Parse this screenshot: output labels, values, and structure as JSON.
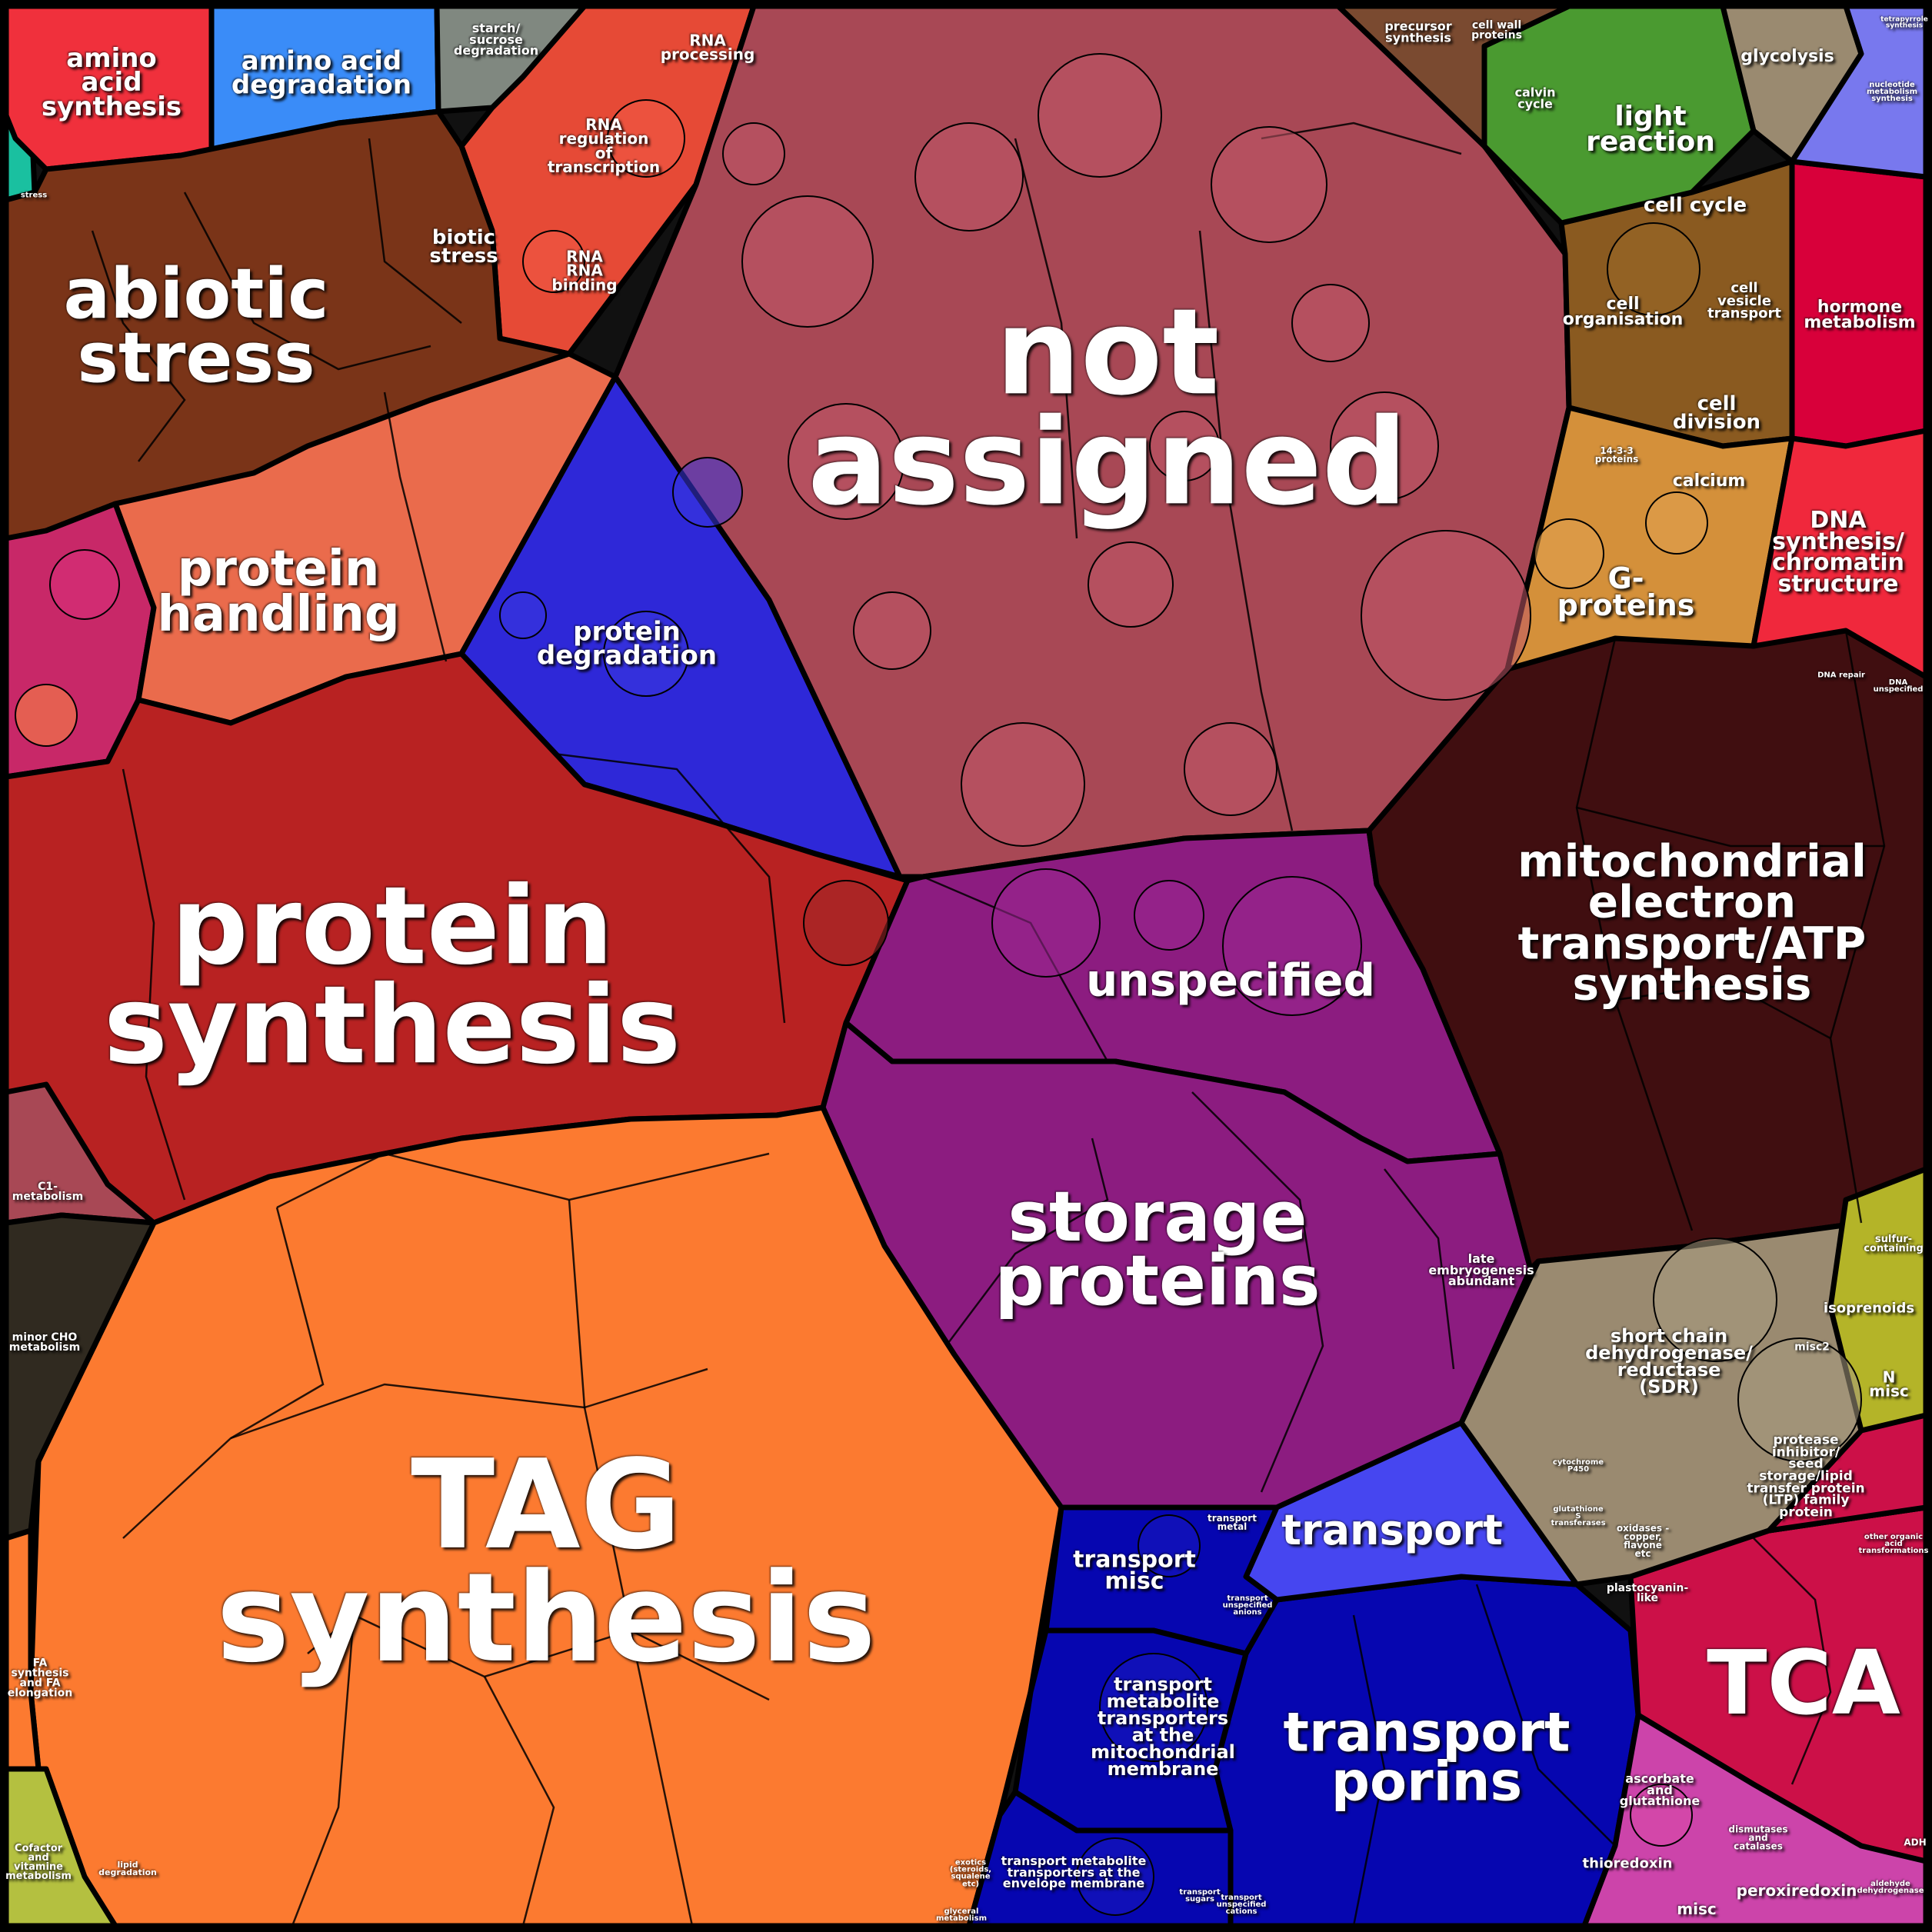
{
  "map": {
    "background": "#111111",
    "regions": [
      {
        "name": "not-assigned",
        "label": "not\nassigned",
        "color": "#a84855"
      },
      {
        "name": "tag-synthesis",
        "label": "TAG\nsynthesis",
        "color": "#fc7a30"
      },
      {
        "name": "protein-synthesis",
        "label": "protein\nsynthesis",
        "color": "#b82222"
      },
      {
        "name": "storage-proteins",
        "label": "storage\nproteins",
        "color": "#8c1c80"
      },
      {
        "name": "unspecified",
        "label": "unspecified",
        "color": "#8c1c80"
      },
      {
        "name": "mitochondrial-electron-transport",
        "label": "mitochondrial\nelectron\ntransport/ATP\nsynthesis",
        "color": "#400e10"
      },
      {
        "name": "abiotic-stress",
        "label": "abiotic\nstress",
        "color": "#7a3418"
      },
      {
        "name": "biotic-stress",
        "label": "biotic\nstress",
        "color": "#7a3418"
      },
      {
        "name": "stress",
        "label": "stress",
        "color": "#7a3418"
      },
      {
        "name": "protein-handling",
        "label": "protein\nhandling",
        "color": "#ea6b4c"
      },
      {
        "name": "protein-degradation",
        "label": "protein\ndegradation",
        "color": "#2e28d8"
      },
      {
        "name": "amino-acid-synthesis",
        "label": "amino\nacid\nsynthesis",
        "color": "#f0303c"
      },
      {
        "name": "amino-acid-degradation",
        "label": "amino acid\ndegradation",
        "color": "#3a8cf8"
      },
      {
        "name": "starch-sucrose-degradation",
        "label": "starch/\nsucrose\ndegradation",
        "color": "#808880"
      },
      {
        "name": "rna-regulation",
        "label": "RNA\nregulation\nof\ntranscription",
        "color": "#e64a36"
      },
      {
        "name": "rna-processing",
        "label": "RNA\nprocessing",
        "color": "#e64a36"
      },
      {
        "name": "rna-binding",
        "label": "RNA\nRNA\nbinding",
        "color": "#e64a36"
      },
      {
        "name": "tca",
        "label": "TCA",
        "color": "#cc1048"
      },
      {
        "name": "transport-porins",
        "label": "transport\nporins",
        "color": "#0606b0"
      },
      {
        "name": "transport",
        "label": "transport",
        "color": "#4646f0"
      },
      {
        "name": "transport-misc",
        "label": "transport\nmisc",
        "color": "#0606b0"
      },
      {
        "name": "transport-mitochondrial-membrane",
        "label": "transport\nmetabolite\ntransporters\nat the\nmitochondrial\nmembrane",
        "color": "#0606b0"
      },
      {
        "name": "transport-envelope-membrane",
        "label": "transport metabolite\ntransporters at the\nenvelope membrane",
        "color": "#0606b0"
      },
      {
        "name": "transport-metal",
        "label": "transport\nmetal",
        "color": "#0606b0"
      },
      {
        "name": "transport-unspecified-anions",
        "label": "transport\nunspecified\nanions",
        "color": "#0606b0"
      },
      {
        "name": "transport-sugars",
        "label": "transport\nsugars",
        "color": "#0606b0"
      },
      {
        "name": "transport-unspecified-cations",
        "label": "transport\nunspecified\ncations",
        "color": "#0606b0"
      },
      {
        "name": "short-chain-dehydrogenase",
        "label": "short chain\ndehydrogenase/\nreductase\n(SDR)",
        "color": "#9a8a70"
      },
      {
        "name": "protease-inhibitor",
        "label": "protease inhibitor/\nseed storage/lipid\ntransfer protein\n(LTP) family\nprotein",
        "color": "#9a8a70"
      },
      {
        "name": "misc2",
        "label": "misc2",
        "color": "#9a8a70"
      },
      {
        "name": "plastocyanin-like",
        "label": "plastocyanin-\nlike",
        "color": "#9a8a70"
      },
      {
        "name": "oxidases",
        "label": "oxidases -\ncopper,\nflavone\netc",
        "color": "#9a8a70"
      },
      {
        "name": "glutathione-s-transferases",
        "label": "glutathione\nS\ntransferases",
        "color": "#9a8a70"
      },
      {
        "name": "cytochrome-p450",
        "label": "cytochrome\nP450",
        "color": "#9a8a70"
      },
      {
        "name": "late-embryogenesis-abundant",
        "label": "late\nembryogenesis\nabundant",
        "color": "#8c1c80"
      },
      {
        "name": "cell-cycle",
        "label": "cell cycle",
        "color": "#8a5a20"
      },
      {
        "name": "cell-organisation",
        "label": "cell\norganisation",
        "color": "#8a5a20"
      },
      {
        "name": "cell-vesicle-transport",
        "label": "cell\nvesicle\ntransport",
        "color": "#8a5a20"
      },
      {
        "name": "cell-division",
        "label": "cell\ndivision",
        "color": "#8a5a20"
      },
      {
        "name": "calcium",
        "label": "calcium",
        "color": "#d4903a"
      },
      {
        "name": "g-proteins",
        "label": "G-\nproteins",
        "color": "#d4903a"
      },
      {
        "name": "14-3-3-proteins",
        "label": "14-3-3\nproteins",
        "color": "#d4903a"
      },
      {
        "name": "hormone-metabolism",
        "label": "hormone\nmetabolism",
        "color": "#d8003a"
      },
      {
        "name": "dna-synthesis-chromatin",
        "label": "DNA\nsynthesis/\nchromatin\nstructure",
        "color": "#f0283c"
      },
      {
        "name": "dna-unspecified",
        "label": "DNA\nunspecified",
        "color": "#f0283c"
      },
      {
        "name": "dna-repair",
        "label": "DNA repair",
        "color": "#f0283c"
      },
      {
        "name": "light-reaction",
        "label": "light\nreaction",
        "color": "#4a9a30"
      },
      {
        "name": "calvin-cycle",
        "label": "calvin\ncycle",
        "color": "#4a9a30"
      },
      {
        "name": "glycolysis",
        "label": "glycolysis",
        "color": "#9a8a70"
      },
      {
        "name": "nucleotide-metabolism",
        "label": "nucleotide\nmetabolism\nsynthesis",
        "color": "#7878ee"
      },
      {
        "name": "tetrapyrrole-synthesis",
        "label": "tetrapyrrole\nsynthesis",
        "color": "#3a3a3a"
      },
      {
        "name": "precursor-synthesis",
        "label": "precursor\nsynthesis",
        "color": "#7a4a30"
      },
      {
        "name": "cell-wall-proteins",
        "label": "cell wall\nproteins",
        "color": "#7a4a30"
      },
      {
        "name": "isoprenoids",
        "label": "isoprenoids",
        "color": "#b4b428"
      },
      {
        "name": "sulfur-containing",
        "label": "sulfur-\ncontaining",
        "color": "#b4b428"
      },
      {
        "name": "n-misc",
        "label": "N\nmisc",
        "color": "#b4b428"
      },
      {
        "name": "other-organic-acid",
        "label": "other organic\nacid\ntransformations",
        "color": "#cc1048"
      },
      {
        "name": "ascorbate-glutathione",
        "label": "ascorbate\nand\nglutathione",
        "color": "#cc44aa"
      },
      {
        "name": "dismutases-catalases",
        "label": "dismutases\nand\ncatalases",
        "color": "#5070d8"
      },
      {
        "name": "thioredoxin",
        "label": "thioredoxin",
        "color": "#4a1a3a"
      },
      {
        "name": "peroxiredoxin",
        "label": "peroxiredoxin",
        "color": "#9a4868"
      },
      {
        "name": "misc-redox",
        "label": "misc",
        "color": "#cc44aa"
      },
      {
        "name": "aldehyde-dehydrogenase",
        "label": "aldehyde\ndehydrogenase",
        "color": "#7a2830"
      },
      {
        "name": "adh",
        "label": "ADH",
        "color": "#7a2830"
      },
      {
        "name": "c1-metabolism",
        "label": "C1-\nmetabolism",
        "color": "#a84855"
      },
      {
        "name": "minor-cho-metabolism",
        "label": "minor CHO\nmetabolism",
        "color": "#302a20"
      },
      {
        "name": "fa-synthesis",
        "label": "FA\nsynthesis\nand FA\nelongation",
        "color": "#fc7a30"
      },
      {
        "name": "cofactor-vitamine",
        "label": "Cofactor\nand\nvitamine\nmetabolism",
        "color": "#b4c040"
      },
      {
        "name": "lipid-degradation",
        "label": "lipid\ndegradation",
        "color": "#fc7a30"
      },
      {
        "name": "exotics",
        "label": "exotics\n(steroids,\nsqualene\netc)",
        "color": "#fc7a30"
      },
      {
        "name": "glycerol-metabolism",
        "label": "glyceral\nmetabolism",
        "color": "#fc7a30"
      }
    ]
  }
}
